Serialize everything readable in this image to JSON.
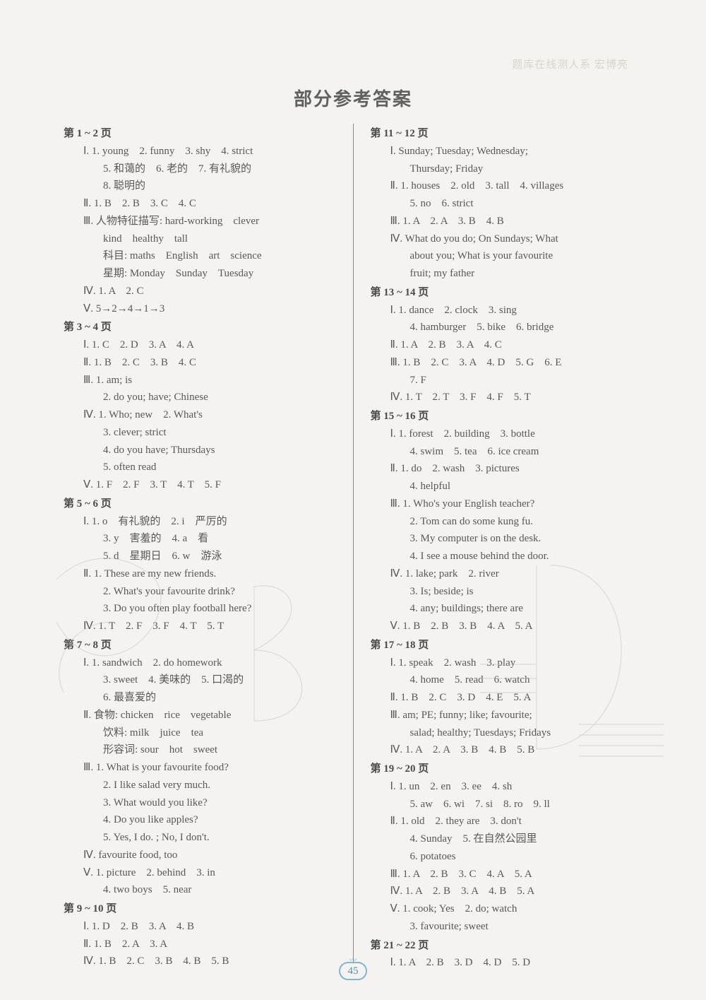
{
  "faint_header": "题库在线测人系 宏博亮",
  "title": "部分参考答案",
  "page_number": "45",
  "left_column": [
    {
      "type": "range",
      "text": "第 1 ~ 2 页"
    },
    {
      "type": "line",
      "text": "Ⅰ. 1. young　2. funny　3. shy　4. strict"
    },
    {
      "type": "sub",
      "text": "5. 和蔼的　6. 老的　7. 有礼貌的"
    },
    {
      "type": "sub",
      "text": "8. 聪明的"
    },
    {
      "type": "line",
      "text": "Ⅱ. 1. B　2. B　3. C　4. C"
    },
    {
      "type": "line",
      "text": "Ⅲ. 人物特征描写: hard-working　clever"
    },
    {
      "type": "sub",
      "text": "kind　healthy　tall"
    },
    {
      "type": "sub",
      "text": "科目: maths　English　art　science"
    },
    {
      "type": "sub",
      "text": "星期: Monday　Sunday　Tuesday"
    },
    {
      "type": "line",
      "text": "Ⅳ. 1. A　2. C"
    },
    {
      "type": "line",
      "text": "Ⅴ. 5→2→4→1→3"
    },
    {
      "type": "range",
      "text": "第 3 ~ 4 页"
    },
    {
      "type": "line",
      "text": "Ⅰ. 1. C　2. D　3. A　4. A"
    },
    {
      "type": "line",
      "text": "Ⅱ. 1. B　2. C　3. B　4. C"
    },
    {
      "type": "line",
      "text": "Ⅲ. 1. am; is"
    },
    {
      "type": "sub",
      "text": "2. do you; have; Chinese"
    },
    {
      "type": "line",
      "text": "Ⅳ. 1. Who; new　2. What's"
    },
    {
      "type": "sub",
      "text": "3. clever; strict"
    },
    {
      "type": "sub",
      "text": "4. do you have; Thursdays"
    },
    {
      "type": "sub",
      "text": "5. often read"
    },
    {
      "type": "line",
      "text": "Ⅴ. 1. F　2. F　3. T　4. T　5. F"
    },
    {
      "type": "range",
      "text": "第 5 ~ 6 页"
    },
    {
      "type": "line",
      "text": "Ⅰ. 1. o　有礼貌的　2. i　严厉的"
    },
    {
      "type": "sub",
      "text": "3. y　害羞的　4. a　看"
    },
    {
      "type": "sub",
      "text": "5. d　星期日　6. w　游泳"
    },
    {
      "type": "line",
      "text": "Ⅱ. 1. These are my new friends."
    },
    {
      "type": "sub",
      "text": "2. What's your favourite drink?"
    },
    {
      "type": "sub",
      "text": "3. Do you often play football here?"
    },
    {
      "type": "line",
      "text": "Ⅳ. 1. T　2. F　3. F　4. T　5. T"
    },
    {
      "type": "range",
      "text": "第 7 ~ 8 页"
    },
    {
      "type": "line",
      "text": "Ⅰ. 1. sandwich　2. do homework"
    },
    {
      "type": "sub",
      "text": "3. sweet　4. 美味的　5. 口渴的"
    },
    {
      "type": "sub",
      "text": "6. 最喜爱的"
    },
    {
      "type": "line",
      "text": "Ⅱ. 食物: chicken　rice　vegetable"
    },
    {
      "type": "sub",
      "text": "饮料: milk　juice　tea"
    },
    {
      "type": "sub",
      "text": "形容词: sour　hot　sweet"
    },
    {
      "type": "line",
      "text": "Ⅲ. 1. What is your favourite food?"
    },
    {
      "type": "sub",
      "text": "2. I like salad very much."
    },
    {
      "type": "sub",
      "text": "3. What would you like?"
    },
    {
      "type": "sub",
      "text": "4. Do you like apples?"
    },
    {
      "type": "sub",
      "text": "5. Yes, I do. ; No, I don't."
    },
    {
      "type": "line",
      "text": "Ⅳ. favourite food, too"
    },
    {
      "type": "line",
      "text": "Ⅴ. 1. picture　2. behind　3. in"
    },
    {
      "type": "sub",
      "text": "4. two boys　5. near"
    },
    {
      "type": "range",
      "text": "第 9 ~ 10 页"
    },
    {
      "type": "line",
      "text": "Ⅰ. 1. D　2. B　3. A　4. B"
    },
    {
      "type": "line",
      "text": "Ⅱ. 1. B　2. A　3. A"
    },
    {
      "type": "line",
      "text": "Ⅳ. 1. B　2. C　3. B　4. B　5. B"
    }
  ],
  "right_column": [
    {
      "type": "range",
      "text": "第 11 ~ 12 页"
    },
    {
      "type": "line",
      "text": "Ⅰ. Sunday; Tuesday; Wednesday;"
    },
    {
      "type": "sub",
      "text": "Thursday; Friday"
    },
    {
      "type": "line",
      "text": "Ⅱ. 1. houses　2. old　3. tall　4. villages"
    },
    {
      "type": "sub",
      "text": "5. no　6. strict"
    },
    {
      "type": "line",
      "text": "Ⅲ. 1. A　2. A　3. B　4. B"
    },
    {
      "type": "line",
      "text": "Ⅳ. What do you do; On Sundays; What"
    },
    {
      "type": "sub",
      "text": "about you; What is your favourite"
    },
    {
      "type": "sub",
      "text": "fruit; my father"
    },
    {
      "type": "range",
      "text": "第 13 ~ 14 页"
    },
    {
      "type": "line",
      "text": "Ⅰ. 1. dance　2. clock　3. sing"
    },
    {
      "type": "sub",
      "text": "4. hamburger　5. bike　6. bridge"
    },
    {
      "type": "line",
      "text": "Ⅱ. 1. A　2. B　3. A　4. C"
    },
    {
      "type": "line",
      "text": "Ⅲ. 1. B　2. C　3. A　4. D　5. G　6. E"
    },
    {
      "type": "sub",
      "text": "7. F"
    },
    {
      "type": "line",
      "text": "Ⅳ. 1. T　2. T　3. F　4. F　5. T"
    },
    {
      "type": "range",
      "text": "第 15 ~ 16 页"
    },
    {
      "type": "line",
      "text": "Ⅰ. 1. forest　2. building　3. bottle"
    },
    {
      "type": "sub",
      "text": "4. swim　5. tea　6. ice cream"
    },
    {
      "type": "line",
      "text": "Ⅱ. 1. do　2. wash　3. pictures"
    },
    {
      "type": "sub",
      "text": "4. helpful"
    },
    {
      "type": "line",
      "text": "Ⅲ. 1. Who's your English teacher?"
    },
    {
      "type": "sub",
      "text": "2. Tom can do some kung fu."
    },
    {
      "type": "sub",
      "text": "3. My computer is on the desk."
    },
    {
      "type": "sub",
      "text": "4. I see a mouse behind the door."
    },
    {
      "type": "line",
      "text": "Ⅳ. 1. lake; park　2. river"
    },
    {
      "type": "sub",
      "text": "3. Is; beside; is"
    },
    {
      "type": "sub",
      "text": "4. any; buildings; there are"
    },
    {
      "type": "line",
      "text": "Ⅴ. 1. B　2. B　3. B　4. A　5. A"
    },
    {
      "type": "range",
      "text": "第 17 ~ 18 页"
    },
    {
      "type": "line",
      "text": "Ⅰ. 1. speak　2. wash　3. play"
    },
    {
      "type": "sub",
      "text": "4. home　5. read　6. watch"
    },
    {
      "type": "line",
      "text": "Ⅱ. 1. B　2. C　3. D　4. E　5. A"
    },
    {
      "type": "line",
      "text": "Ⅲ. am; PE; funny; like; favourite;"
    },
    {
      "type": "sub",
      "text": "salad; healthy; Tuesdays; Fridays"
    },
    {
      "type": "line",
      "text": "Ⅳ. 1. A　2. A　3. B　4. B　5. B"
    },
    {
      "type": "range",
      "text": "第 19 ~ 20 页"
    },
    {
      "type": "line",
      "text": "Ⅰ. 1. un　2. en　3. ee　4. sh"
    },
    {
      "type": "sub",
      "text": "5. aw　6. wi　7. si　8. ro　9. ll"
    },
    {
      "type": "line",
      "text": "Ⅱ. 1. old　2. they are　3. don't"
    },
    {
      "type": "sub",
      "text": "4. Sunday　5. 在自然公园里"
    },
    {
      "type": "sub",
      "text": "6. potatoes"
    },
    {
      "type": "line",
      "text": "Ⅲ. 1. A　2. B　3. C　4. A　5. A"
    },
    {
      "type": "line",
      "text": "Ⅳ. 1. A　2. B　3. A　4. B　5. A"
    },
    {
      "type": "line",
      "text": "Ⅴ. 1. cook; Yes　2. do; watch"
    },
    {
      "type": "sub",
      "text": "3. favourite; sweet"
    },
    {
      "type": "range",
      "text": "第 21 ~ 22 页"
    },
    {
      "type": "line",
      "text": "Ⅰ. 1. A　2. B　3. D　4. D　5. D"
    }
  ]
}
